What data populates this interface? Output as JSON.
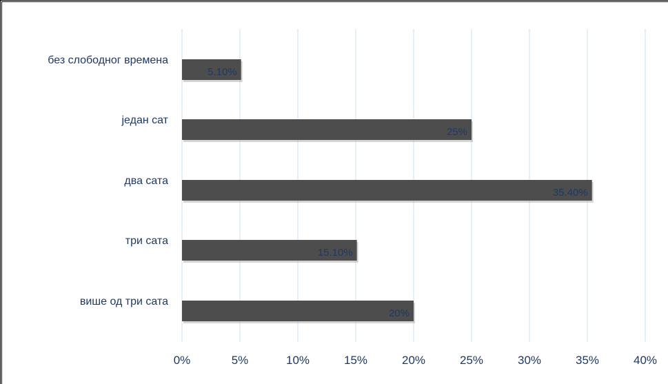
{
  "chart_data": {
    "type": "bar",
    "orientation": "horizontal",
    "title": "",
    "xlabel": "",
    "ylabel": "",
    "categories": [
      "без слободног времена",
      "један сат",
      "два сата",
      "три сата",
      "више од три сата"
    ],
    "values": [
      5.1,
      25,
      35.4,
      15.1,
      20
    ],
    "data_labels": [
      "5.10%",
      "25%",
      "35.40%",
      "15.10%",
      "20%"
    ],
    "x_ticks": [
      "0%",
      "5%",
      "10%",
      "15%",
      "20%",
      "25%",
      "30%",
      "35%",
      "40%"
    ],
    "xlim": [
      0,
      40
    ],
    "grid": true,
    "legend": "none",
    "bar_color": "#4d4d4d",
    "grid_color": "#d6e2ef",
    "label_color": "#1f3864"
  }
}
